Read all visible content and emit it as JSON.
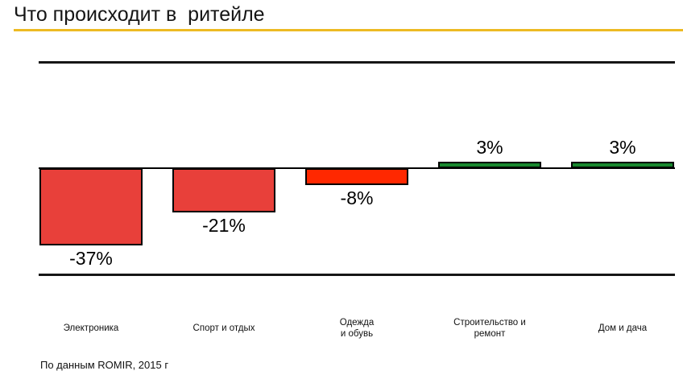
{
  "title": "Что происходит в  ритейле",
  "footer": "По данным ROMIR, 2015 г",
  "colors": {
    "title_underline": "#edba23",
    "rule": "#161616",
    "negative_bar": "#e8403a",
    "negative_bar_strong": "#ff2800",
    "positive_bar": "#17872d",
    "bar_border": "#000000",
    "text": "#111111"
  },
  "chart_data": {
    "type": "bar",
    "title": "Что происходит в  ритейле",
    "categories": [
      "Электроника",
      "Спорт и отдых",
      "Одежда\nи обувь",
      "Строительство и\nремонт",
      "Дом и дача"
    ],
    "values": [
      -37,
      -21,
      -8,
      3,
      3
    ],
    "value_labels": [
      "-37%",
      "-21%",
      "-8%",
      "3%",
      "3%"
    ],
    "bar_colors": [
      "#e8403a",
      "#e8403a",
      "#ff2800",
      "#17872d",
      "#17872d"
    ],
    "unit": "%",
    "baseline": 0,
    "xlabel": "",
    "ylabel": "",
    "grid": false,
    "legend": null,
    "source_note": "По данным ROMIR, 2015 г"
  }
}
